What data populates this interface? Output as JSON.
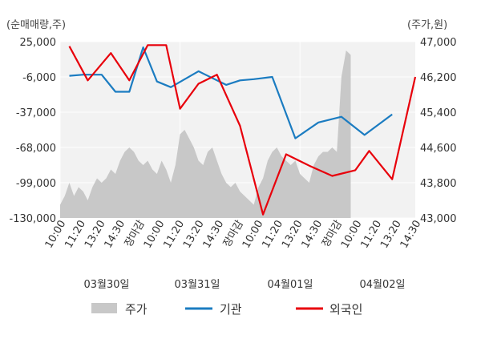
{
  "chart_data": {
    "type": "line",
    "left_unit": "(순매매량,주)",
    "right_unit": "(주가,원)",
    "left_ticks": [
      "25,000",
      "-6,000",
      "-37,000",
      "-68,000",
      "-99,000",
      "-130,000"
    ],
    "left_ylim": [
      -130000,
      25000
    ],
    "right_ticks": [
      "47,000",
      "46,200",
      "45,400",
      "44,600",
      "43,800",
      "43,000"
    ],
    "right_ylim": [
      43000,
      47000
    ],
    "x_tick_labels": [
      "10:00",
      "11:20",
      "13:20",
      "14:30",
      "장마감",
      "10:00",
      "11:20",
      "13:20",
      "14:30",
      "장마감",
      "10:00",
      "11:20",
      "13:20",
      "14:30",
      "장마감",
      "10:00",
      "11:20",
      "13:20",
      "14:30"
    ],
    "day_labels": [
      "03월30일",
      "03월31일",
      "04월01일",
      "04월02일"
    ],
    "highlight_color": "#e8000b",
    "grid": true,
    "legend_position": "bottom",
    "series": [
      {
        "name": "주가",
        "kind": "area",
        "axis": "right",
        "color": "#c8c8c8",
        "points": [
          [
            0,
            43300
          ],
          [
            1,
            43500
          ],
          [
            2,
            43800
          ],
          [
            3,
            43500
          ],
          [
            4,
            43700
          ],
          [
            5,
            43600
          ],
          [
            6,
            43400
          ],
          [
            7,
            43700
          ],
          [
            8,
            43900
          ],
          [
            9,
            43800
          ],
          [
            10,
            43900
          ],
          [
            11,
            44100
          ],
          [
            12,
            44000
          ],
          [
            13,
            44300
          ],
          [
            14,
            44500
          ],
          [
            15,
            44600
          ],
          [
            16,
            44500
          ],
          [
            17,
            44300
          ],
          [
            18,
            44200
          ],
          [
            19,
            44300
          ],
          [
            20,
            44100
          ],
          [
            21,
            44000
          ],
          [
            22,
            44300
          ],
          [
            23,
            44100
          ],
          [
            24,
            43800
          ],
          [
            25,
            44200
          ],
          [
            26,
            44900
          ],
          [
            27,
            45000
          ],
          [
            28,
            44800
          ],
          [
            29,
            44600
          ],
          [
            30,
            44300
          ],
          [
            31,
            44200
          ],
          [
            32,
            44500
          ],
          [
            33,
            44600
          ],
          [
            34,
            44300
          ],
          [
            35,
            44000
          ],
          [
            36,
            43800
          ],
          [
            37,
            43700
          ],
          [
            38,
            43800
          ],
          [
            39,
            43600
          ],
          [
            40,
            43500
          ],
          [
            41,
            43400
          ],
          [
            42,
            43300
          ],
          [
            43,
            43700
          ],
          [
            44,
            43900
          ],
          [
            45,
            44300
          ],
          [
            46,
            44500
          ],
          [
            47,
            44600
          ],
          [
            48,
            44400
          ],
          [
            49,
            44300
          ],
          [
            50,
            44200
          ],
          [
            51,
            44300
          ],
          [
            52,
            44000
          ],
          [
            53,
            43900
          ],
          [
            54,
            43800
          ],
          [
            55,
            44200
          ],
          [
            56,
            44400
          ],
          [
            57,
            44500
          ],
          [
            58,
            44500
          ],
          [
            59,
            44600
          ],
          [
            60,
            44500
          ],
          [
            61,
            46200
          ],
          [
            62,
            46800
          ],
          [
            63,
            46700
          ]
        ]
      },
      {
        "name": "기관",
        "kind": "line",
        "axis": "left",
        "color": "#1b7cc1",
        "points": [
          [
            2,
            -5000
          ],
          [
            5,
            -4000
          ],
          [
            9,
            -4000
          ],
          [
            12,
            -19000
          ],
          [
            15,
            -19000
          ],
          [
            18,
            20000
          ],
          [
            21,
            -10000
          ],
          [
            24,
            -15000
          ],
          [
            30,
            -1000
          ],
          [
            36,
            -13000
          ],
          [
            39,
            -9000
          ],
          [
            42,
            -8000
          ],
          [
            46,
            -6000
          ],
          [
            51,
            -60000
          ],
          [
            56,
            -46000
          ],
          [
            61,
            -41000
          ],
          [
            66,
            -57000
          ],
          [
            72,
            -39000
          ]
        ]
      },
      {
        "name": "외국인",
        "kind": "line",
        "axis": "left",
        "color": "#e8000b",
        "points": [
          [
            2,
            21000
          ],
          [
            6,
            -9000
          ],
          [
            11,
            15000
          ],
          [
            15,
            -9000
          ],
          [
            19,
            22000
          ],
          [
            23,
            22000
          ],
          [
            26,
            -34000
          ],
          [
            30,
            -12000
          ],
          [
            34,
            -4000
          ],
          [
            39,
            -49000
          ],
          [
            44,
            -127000
          ],
          [
            49,
            -74000
          ],
          [
            54,
            -84000
          ],
          [
            59,
            -93000
          ],
          [
            64,
            -88000
          ],
          [
            67,
            -71000
          ],
          [
            72,
            -96000
          ],
          [
            77,
            -6000
          ]
        ]
      }
    ]
  }
}
